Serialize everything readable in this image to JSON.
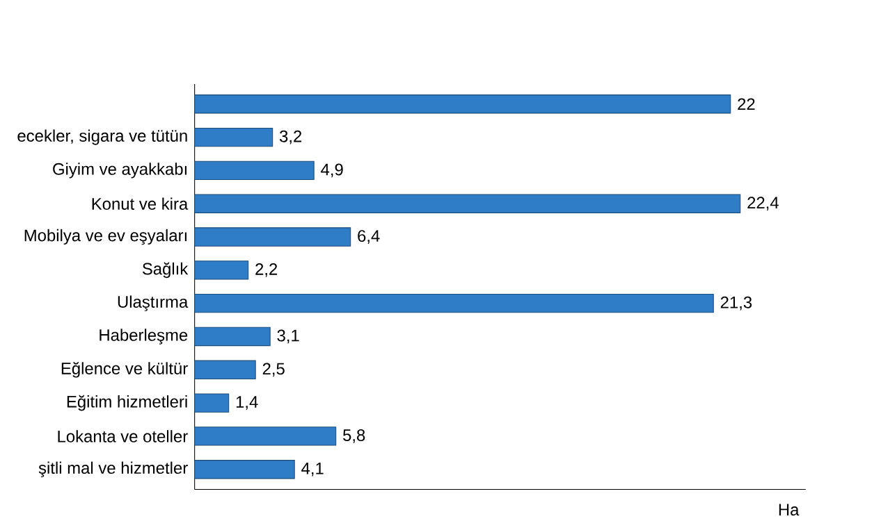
{
  "chart_data": {
    "type": "bar",
    "orientation": "horizontal",
    "categories": [
      null,
      "ecekler, sigara ve tütün",
      "Giyim ve ayakkabı",
      "Konut ve kira",
      "Mobilya ve ev eşyaları",
      "Sağlık",
      "Ulaştırma",
      "Haberleşme",
      "Eğlence ve kültür",
      "Eğitim hizmetleri",
      "Lokanta ve oteller",
      "şitli mal ve hizmetler"
    ],
    "values": [
      22,
      3.2,
      4.9,
      22.4,
      6.4,
      2.2,
      21.3,
      3.1,
      2.5,
      1.4,
      5.8,
      4.1
    ],
    "value_labels": [
      "22",
      "3,2",
      "4,9",
      "22,4",
      "6,4",
      "2,2",
      "21,3",
      "3,1",
      "2,5",
      "1,4",
      "5,8",
      "4,1"
    ],
    "color": "#2f7dc6",
    "annotations": [
      "Ha"
    ]
  }
}
